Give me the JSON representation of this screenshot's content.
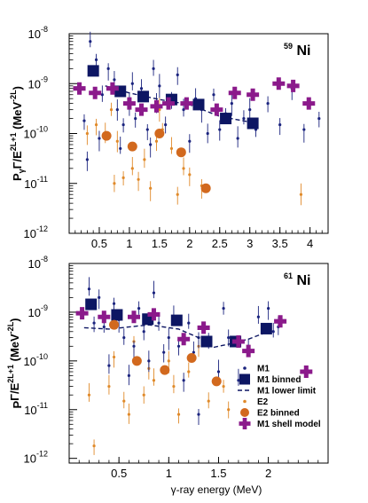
{
  "colors": {
    "m1": "#1a237e",
    "m1_binned": "#0d1663",
    "e2": "#e08a2a",
    "e2_binned": "#d2691e",
    "shell": "#8b1a8b"
  },
  "legend": {
    "items": [
      {
        "key": "m1",
        "label": "M1"
      },
      {
        "key": "m1_binned",
        "label": "M1 binned"
      },
      {
        "key": "m1_lower",
        "label": "M1 lower limit"
      },
      {
        "key": "e2",
        "label": "E2"
      },
      {
        "key": "e2_binned",
        "label": "E2 binned"
      },
      {
        "key": "shell",
        "label": "M1 shell model"
      }
    ]
  },
  "chart_data": [
    {
      "type": "scatter",
      "panel_label": "59Ni",
      "panel_label_base": "",
      "panel_label_sup": "59",
      "panel_label_main": "Ni",
      "ylabel_main": "P",
      "ylabel_sub": "γ",
      "ylabel_rest": "Γ/E",
      "ylabel_sup": "2L+1",
      "ylabel_unit": " (MeV",
      "ylabel_unit_sup": "-2L",
      "ylabel_close": ")",
      "xlim": [
        0,
        4.3
      ],
      "ylim": [
        1e-12,
        1e-08
      ],
      "yscale": "log",
      "xticks": [
        0.5,
        1,
        1.5,
        2,
        2.5,
        3,
        3.5,
        4
      ],
      "xtick_labels": [
        "0.5",
        "1",
        "1.5",
        "2",
        "2.5",
        "3",
        "3.5",
        "4"
      ],
      "yticks": [
        {
          "base": "10",
          "exp": "-12"
        },
        {
          "base": "10",
          "exp": "-11"
        },
        {
          "base": "10",
          "exp": "-10"
        },
        {
          "base": "10",
          "exp": "-9"
        },
        {
          "base": "10",
          "exp": "-8"
        }
      ],
      "series": [
        {
          "name": "M1",
          "key": "m1",
          "points": [
            [
              0.35,
              7e-09
            ],
            [
              0.45,
              3e-09
            ],
            [
              0.25,
              1.8e-10
            ],
            [
              0.3,
              3e-11
            ],
            [
              0.5,
              8e-11
            ],
            [
              0.55,
              6e-10
            ],
            [
              0.65,
              2e-09
            ],
            [
              0.75,
              1.2e-09
            ],
            [
              0.8,
              3e-10
            ],
            [
              0.85,
              5e-11
            ],
            [
              0.9,
              1.5e-10
            ],
            [
              1.0,
              4e-10
            ],
            [
              1.05,
              1e-09
            ],
            [
              1.1,
              2e-10
            ],
            [
              1.2,
              8e-10
            ],
            [
              1.3,
              1.2e-10
            ],
            [
              1.35,
              6e-11
            ],
            [
              1.4,
              2e-09
            ],
            [
              1.45,
              4e-10
            ],
            [
              1.5,
              9e-10
            ],
            [
              1.6,
              1.5e-10
            ],
            [
              1.7,
              4e-10
            ],
            [
              1.8,
              1.5e-09
            ],
            [
              1.9,
              3e-10
            ],
            [
              2.0,
              7e-11
            ],
            [
              2.1,
              5e-10
            ],
            [
              2.2,
              3e-10
            ],
            [
              2.3,
              1e-10
            ],
            [
              2.4,
              6e-10
            ],
            [
              2.5,
              1.2e-10
            ],
            [
              2.6,
              2.5e-10
            ],
            [
              2.7,
              4e-10
            ],
            [
              2.8,
              8e-11
            ],
            [
              2.9,
              2e-10
            ],
            [
              3.0,
              3e-10
            ],
            [
              3.1,
              1.2e-10
            ],
            [
              3.3,
              4e-10
            ],
            [
              3.5,
              1.5e-10
            ],
            [
              3.7,
              8e-10
            ],
            [
              3.9,
              1.2e-10
            ],
            [
              4.15,
              2e-10
            ]
          ]
        },
        {
          "name": "E2",
          "key": "e2",
          "points": [
            [
              0.3,
              1e-10
            ],
            [
              0.45,
              1.5e-10
            ],
            [
              0.6,
              1e-10
            ],
            [
              0.7,
              3e-10
            ],
            [
              0.75,
              1e-11
            ],
            [
              0.8,
              7e-11
            ],
            [
              0.9,
              1.3e-11
            ],
            [
              1.05,
              2e-11
            ],
            [
              1.15,
              1.2e-11
            ],
            [
              1.25,
              3e-11
            ],
            [
              1.35,
              8e-12
            ],
            [
              1.45,
              7e-11
            ],
            [
              1.5,
              3e-10
            ],
            [
              1.55,
              1.2e-10
            ],
            [
              1.7,
              5e-11
            ],
            [
              1.8,
              6e-12
            ],
            [
              1.9,
              2e-11
            ],
            [
              2.0,
              1.5e-11
            ],
            [
              2.2,
              9e-12
            ],
            [
              3.85,
              6e-12
            ]
          ]
        },
        {
          "name": "E2 binned",
          "key": "e2_binned",
          "points": [
            [
              0.62,
              9e-11
            ],
            [
              1.05,
              5.5e-11
            ],
            [
              1.5,
              1e-10
            ],
            [
              1.86,
              4.2e-11
            ],
            [
              2.27,
              8e-12
            ]
          ]
        },
        {
          "name": "M1 binned",
          "key": "m1_binned",
          "points": [
            [
              0.4,
              1.8e-09
            ],
            [
              0.85,
              7e-10
            ],
            [
              1.23,
              5.5e-10
            ],
            [
              1.7,
              4.8e-10
            ],
            [
              2.15,
              3.8e-10
            ],
            [
              2.6,
              2e-10
            ],
            [
              3.05,
              1.6e-10
            ]
          ]
        },
        {
          "name": "M1 lower limit",
          "key": "m1_lower",
          "points": [
            [
              0.6,
              9e-10
            ],
            [
              1.0,
              6.5e-10
            ],
            [
              1.5,
              4.8e-10
            ],
            [
              2.0,
              3.8e-10
            ],
            [
              2.5,
              2.2e-10
            ],
            [
              3.0,
              1.7e-10
            ]
          ]
        },
        {
          "name": "M1 shell model",
          "key": "shell",
          "points": [
            [
              0.17,
              8e-10
            ],
            [
              0.43,
              6.5e-10
            ],
            [
              0.72,
              8e-10
            ],
            [
              1.0,
              4e-10
            ],
            [
              1.2,
              3e-10
            ],
            [
              1.45,
              3.5e-10
            ],
            [
              1.65,
              4e-10
            ],
            [
              1.95,
              4e-10
            ],
            [
              2.45,
              3e-10
            ],
            [
              2.75,
              6.5e-10
            ],
            [
              3.05,
              6e-10
            ],
            [
              3.48,
              1e-09
            ],
            [
              3.72,
              9e-10
            ],
            [
              3.98,
              4e-10
            ]
          ]
        }
      ]
    },
    {
      "type": "scatter",
      "panel_label": "61Ni",
      "panel_label_base": "",
      "panel_label_sup": "61",
      "panel_label_main": "Ni",
      "ylabel_main": "P",
      "ylabel_sub": "",
      "ylabel_rest": "Γ/E",
      "ylabel_sup": "2L+1",
      "ylabel_unit": " (MeV",
      "ylabel_unit_sup": "-2L",
      "ylabel_close": ")",
      "xlabel": "γ-ray energy (MeV)",
      "xlim": [
        0,
        2.6
      ],
      "ylim": [
        8e-13,
        1e-08
      ],
      "yscale": "log",
      "xticks": [
        0.5,
        1,
        1.5,
        2
      ],
      "xtick_labels": [
        "0.5",
        "1",
        "1.5",
        "2"
      ],
      "yticks": [
        {
          "base": "10",
          "exp": "-12"
        },
        {
          "base": "10",
          "exp": "-11"
        },
        {
          "base": "10",
          "exp": "-10"
        },
        {
          "base": "10",
          "exp": "-9"
        },
        {
          "base": "10",
          "exp": "-8"
        }
      ],
      "series": [
        {
          "name": "M1",
          "key": "m1",
          "points": [
            [
              0.2,
              3e-09
            ],
            [
              0.25,
              6e-10
            ],
            [
              0.3,
              2e-09
            ],
            [
              0.35,
              5e-10
            ],
            [
              0.4,
              8e-11
            ],
            [
              0.45,
              1.5e-09
            ],
            [
              0.5,
              7e-10
            ],
            [
              0.55,
              3e-10
            ],
            [
              0.6,
              5e-11
            ],
            [
              0.65,
              2e-10
            ],
            [
              0.7,
              1.2e-09
            ],
            [
              0.75,
              4e-10
            ],
            [
              0.8,
              1e-10
            ],
            [
              0.85,
              2.5e-09
            ],
            [
              0.9,
              6e-10
            ],
            [
              0.95,
              1.5e-10
            ],
            [
              1.0,
              3e-10
            ],
            [
              1.05,
              8e-10
            ],
            [
              1.1,
              2e-10
            ],
            [
              1.15,
              4e-11
            ],
            [
              1.2,
              6e-10
            ],
            [
              1.25,
              1.5e-10
            ],
            [
              1.3,
              3e-10
            ],
            [
              1.4,
              2.5e-10
            ],
            [
              1.5,
              6e-11
            ],
            [
              1.55,
              1.2e-09
            ],
            [
              1.6,
              3e-10
            ],
            [
              1.7,
              4e-11
            ],
            [
              1.8,
              2e-10
            ],
            [
              1.9,
              8e-10
            ],
            [
              2.0,
              1.2e-09
            ],
            [
              2.05,
              4e-10
            ],
            [
              2.1,
              5e-10
            ],
            [
              1.3,
              8e-12
            ]
          ]
        },
        {
          "name": "E2",
          "key": "e2",
          "points": [
            [
              0.2,
              2e-11
            ],
            [
              0.25,
              1.8e-12
            ],
            [
              0.4,
              3e-11
            ],
            [
              0.45,
              1.2e-10
            ],
            [
              0.55,
              1.5e-11
            ],
            [
              0.6,
              8e-12
            ],
            [
              0.65,
              2.5e-10
            ],
            [
              0.75,
              2e-11
            ],
            [
              0.8,
              7e-11
            ],
            [
              0.85,
              4e-11
            ],
            [
              1.0,
              1e-10
            ],
            [
              1.05,
              3e-11
            ],
            [
              1.1,
              8e-12
            ],
            [
              1.2,
              6e-11
            ],
            [
              1.3,
              2e-10
            ],
            [
              1.4,
              1.5e-11
            ],
            [
              1.55,
              3e-11
            ],
            [
              1.6,
              1e-11
            ]
          ]
        },
        {
          "name": "E2 binned",
          "key": "e2_binned",
          "points": [
            [
              0.45,
              5.5e-10
            ],
            [
              0.68,
              1e-10
            ],
            [
              0.96,
              6.5e-11
            ],
            [
              1.23,
              1.15e-10
            ],
            [
              1.48,
              3.8e-11
            ]
          ]
        },
        {
          "name": "M1 binned",
          "key": "m1_binned",
          "points": [
            [
              0.22,
              1.45e-09
            ],
            [
              0.48,
              8.8e-10
            ],
            [
              0.79,
              7.2e-10
            ],
            [
              1.08,
              6.8e-10
            ],
            [
              1.38,
              2.5e-10
            ],
            [
              1.67,
              2.5e-10
            ],
            [
              1.98,
              4.6e-10
            ]
          ]
        },
        {
          "name": "M1 lower limit",
          "key": "m1_lower",
          "points": [
            [
              0.15,
              4.8e-10
            ],
            [
              0.4,
              4.5e-10
            ],
            [
              0.8,
              5.5e-10
            ],
            [
              1.1,
              4.5e-10
            ],
            [
              1.3,
              3e-10
            ],
            [
              1.45,
              1.9e-10
            ],
            [
              1.6,
              2.2e-10
            ],
            [
              1.8,
              2.8e-10
            ],
            [
              2.0,
              4e-10
            ]
          ]
        },
        {
          "name": "M1 shell model",
          "key": "shell",
          "points": [
            [
              0.13,
              9.5e-10
            ],
            [
              0.35,
              8e-10
            ],
            [
              0.65,
              8e-10
            ],
            [
              0.85,
              9e-10
            ],
            [
              1.15,
              2.8e-10
            ],
            [
              1.35,
              4.8e-10
            ],
            [
              1.7,
              2.5e-10
            ],
            [
              1.8,
              1.6e-10
            ],
            [
              2.12,
              6.5e-10
            ],
            [
              2.38,
              6e-11
            ]
          ]
        }
      ]
    }
  ]
}
